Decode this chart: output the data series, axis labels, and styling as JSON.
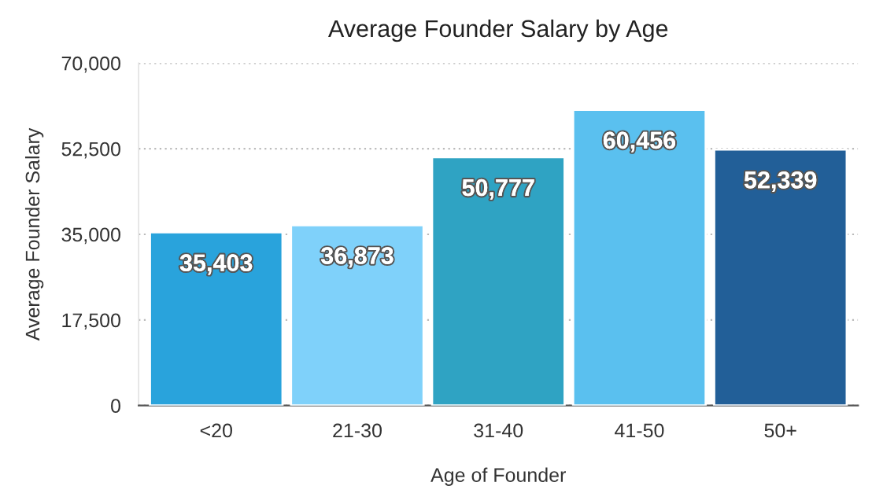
{
  "chart_data": {
    "type": "bar",
    "title": "Average Founder Salary by Age",
    "xlabel": "Age of Founder",
    "ylabel": "Average Founder Salary",
    "categories": [
      "<20",
      "21-30",
      "31-40",
      "41-50",
      "50+"
    ],
    "values": [
      35403,
      36873,
      50777,
      60456,
      52339
    ],
    "value_labels": [
      "35,403",
      "36,873",
      "50,777",
      "60,456",
      "52,339"
    ],
    "colors": [
      "#29a3dc",
      "#7fd1fa",
      "#2fa3c3",
      "#5ac0ef",
      "#225f98"
    ],
    "ylim": [
      0,
      70000
    ],
    "yticks": [
      0,
      {
        "value": 17500,
        "label": "17,500"
      },
      {
        "value": 35000,
        "label": "35,000"
      },
      {
        "value": 52500,
        "label": "52,500"
      },
      {
        "value": 70000,
        "label": "70,000"
      }
    ],
    "grid": "y",
    "legend": false
  }
}
